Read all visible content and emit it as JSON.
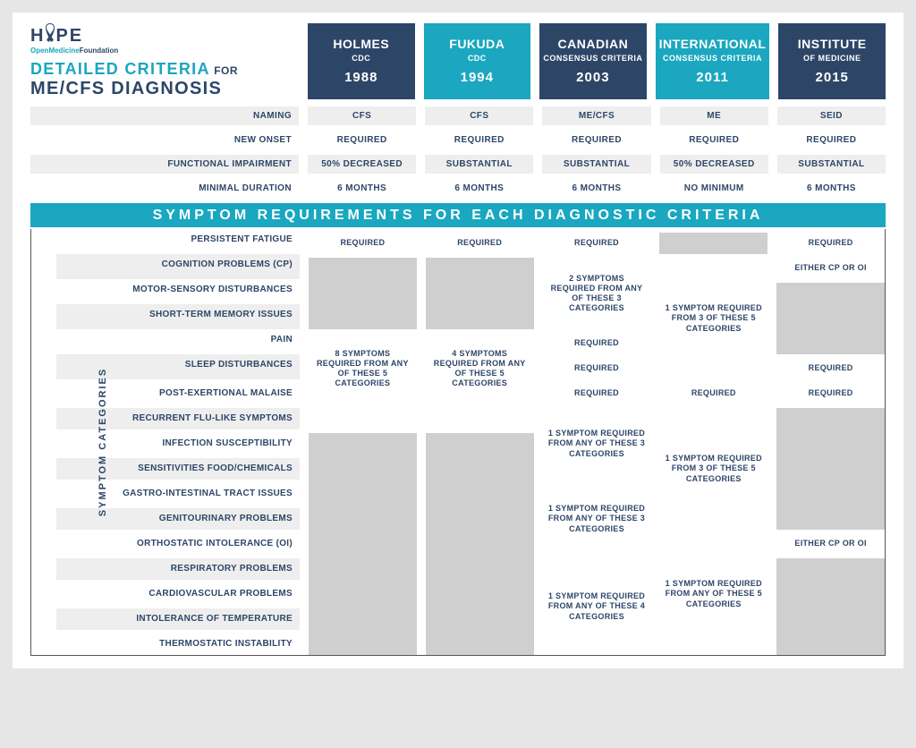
{
  "colors": {
    "dark_blue": "#2d4668",
    "teal": "#1aa7bf",
    "page_bg": "#e6e6e6",
    "shade": "#eeeeee",
    "grey_cell": "#cfcfcf"
  },
  "logo": {
    "text_prefix": "H",
    "text_suffix": "PE",
    "subtitle_teal": "OpenMedicine",
    "subtitle_dark": "Foundation"
  },
  "title": {
    "line1": "DETAILED CRITERIA",
    "for": "FOR",
    "line2": "ME/CFS DIAGNOSIS"
  },
  "columns": [
    {
      "name": "HOLMES",
      "sub": "CDC",
      "year": "1988",
      "shade": "dark"
    },
    {
      "name": "FUKUDA",
      "sub": "CDC",
      "year": "1994",
      "shade": "light"
    },
    {
      "name": "CANADIAN",
      "sub": "CONSENSUS CRITERIA",
      "year": "2003",
      "shade": "dark"
    },
    {
      "name": "INTERNATIONAL",
      "sub": "CONSENSUS CRITERIA",
      "year": "2011",
      "shade": "light"
    },
    {
      "name": "INSTITUTE",
      "sub": "OF MEDICINE",
      "year": "2015",
      "shade": "dark"
    }
  ],
  "summary_rows": [
    {
      "label": "NAMING",
      "shade": true,
      "cells": [
        "CFS",
        "CFS",
        "ME/CFS",
        "ME",
        "SEID"
      ]
    },
    {
      "label": "NEW ONSET",
      "shade": false,
      "cells": [
        "REQUIRED",
        "REQUIRED",
        "REQUIRED",
        "REQUIRED",
        "REQUIRED"
      ]
    },
    {
      "label": "FUNCTIONAL IMPAIRMENT",
      "shade": true,
      "cells": [
        "50% DECREASED",
        "SUBSTANTIAL",
        "SUBSTANTIAL",
        "50% DECREASED",
        "SUBSTANTIAL"
      ]
    },
    {
      "label": "MINIMAL DURATION",
      "shade": false,
      "cells": [
        "6 MONTHS",
        "6 MONTHS",
        "6 MONTHS",
        "NO MINIMUM",
        "6 MONTHS"
      ]
    }
  ],
  "banner": "SYMPTOM REQUIREMENTS FOR EACH DIAGNOSTIC CRITERIA",
  "side_label": "SYMPTOM CATEGORIES",
  "symptom_rows": [
    {
      "label": "PERSISTENT FATIGUE",
      "shade": false
    },
    {
      "label": "COGNITION PROBLEMS (CP)",
      "shade": true
    },
    {
      "label": "MOTOR-SENSORY DISTURBANCES",
      "shade": false
    },
    {
      "label": "SHORT-TERM MEMORY ISSUES",
      "shade": true
    },
    {
      "label": "PAIN",
      "shade": false
    },
    {
      "label": "SLEEP DISTURBANCES",
      "shade": true
    },
    {
      "label": "POST-EXERTIONAL MALAISE",
      "shade": false
    },
    {
      "label": "RECURRENT FLU-LIKE SYMPTOMS",
      "shade": true
    },
    {
      "label": "INFECTION SUSCEPTIBILITY",
      "shade": false
    },
    {
      "label": "SENSITIVITIES FOOD/CHEMICALS",
      "shade": true
    },
    {
      "label": "GASTRO-INTESTINAL TRACT ISSUES",
      "shade": false
    },
    {
      "label": "GENITOURINARY PROBLEMS",
      "shade": true
    },
    {
      "label": "ORTHOSTATIC INTOLERANCE (OI)",
      "shade": false
    },
    {
      "label": "RESPIRATORY PROBLEMS",
      "shade": true
    },
    {
      "label": "CARDIOVASCULAR PROBLEMS",
      "shade": false
    },
    {
      "label": "INTOLERANCE OF TEMPERATURE",
      "shade": true
    },
    {
      "label": "THERMOSTATIC INSTABILITY",
      "shade": false
    }
  ],
  "symptom_columns": [
    {
      "id": "holmes",
      "cells": [
        {
          "row": 0,
          "span": 1,
          "text": "REQUIRED",
          "style": "plain"
        },
        {
          "row": 1,
          "span": 3,
          "text": "",
          "style": "grey"
        },
        {
          "row": 4,
          "span": 3,
          "text": "8 SYMPTOMS REQUIRED FROM ANY OF THESE 5 CATEGORIES",
          "style": "plain"
        },
        {
          "row": 7,
          "span": 1,
          "text": "",
          "style": "plain"
        },
        {
          "row": 8,
          "span": 9,
          "text": "",
          "style": "grey"
        }
      ]
    },
    {
      "id": "fukuda",
      "cells": [
        {
          "row": 0,
          "span": 1,
          "text": "REQUIRED",
          "style": "plain"
        },
        {
          "row": 1,
          "span": 3,
          "text": "",
          "style": "grey"
        },
        {
          "row": 4,
          "span": 3,
          "text": "4 SYMPTOMS REQUIRED FROM ANY OF THESE 5 CATEGORIES",
          "style": "plain"
        },
        {
          "row": 7,
          "span": 1,
          "text": "",
          "style": "plain"
        },
        {
          "row": 8,
          "span": 9,
          "text": "",
          "style": "grey"
        }
      ]
    },
    {
      "id": "canadian",
      "cells": [
        {
          "row": 0,
          "span": 1,
          "text": "REQUIRED",
          "style": "plain"
        },
        {
          "row": 1,
          "span": 3,
          "text": "2 SYMPTOMS REQUIRED FROM ANY OF THESE 3 CATEGORIES",
          "style": "plain"
        },
        {
          "row": 4,
          "span": 1,
          "text": "REQUIRED",
          "style": "plain"
        },
        {
          "row": 5,
          "span": 1,
          "text": "REQUIRED",
          "style": "plain"
        },
        {
          "row": 6,
          "span": 1,
          "text": "REQUIRED",
          "style": "plain"
        },
        {
          "row": 7,
          "span": 3,
          "text": "1 SYMPTOM REQUIRED FROM ANY OF THESE 3 CATEGORIES",
          "style": "plain"
        },
        {
          "row": 10,
          "span": 3,
          "text": "1 SYMPTOM REQUIRED FROM ANY OF THESE 3 CATEGORIES",
          "style": "plain"
        },
        {
          "row": 13,
          "span": 4,
          "text": "1 SYMPTOM REQUIRED FROM ANY OF THESE 4 CATEGORIES",
          "style": "plain"
        }
      ]
    },
    {
      "id": "international",
      "cells": [
        {
          "row": 0,
          "span": 1,
          "text": "",
          "style": "grey"
        },
        {
          "row": 1,
          "span": 5,
          "text": "1 SYMPTOM REQUIRED FROM 3 OF THESE 5 CATEGORIES",
          "style": "plain"
        },
        {
          "row": 6,
          "span": 1,
          "text": "REQUIRED",
          "style": "plain"
        },
        {
          "row": 7,
          "span": 5,
          "text": "1 SYMPTOM REQUIRED FROM 3 OF THESE 5 CATEGORIES",
          "style": "plain"
        },
        {
          "row": 12,
          "span": 5,
          "text": "1 SYMPTOM REQUIRED FROM ANY OF THESE 5 CATEGORIES",
          "style": "plain"
        }
      ]
    },
    {
      "id": "institute",
      "cells": [
        {
          "row": 0,
          "span": 1,
          "text": "REQUIRED",
          "style": "plain"
        },
        {
          "row": 1,
          "span": 1,
          "text": "EITHER CP OR OI",
          "style": "plain"
        },
        {
          "row": 2,
          "span": 3,
          "text": "",
          "style": "grey"
        },
        {
          "row": 5,
          "span": 1,
          "text": "REQUIRED",
          "style": "plain"
        },
        {
          "row": 6,
          "span": 1,
          "text": "REQUIRED",
          "style": "plain"
        },
        {
          "row": 7,
          "span": 5,
          "text": "",
          "style": "grey"
        },
        {
          "row": 12,
          "span": 1,
          "text": "EITHER CP OR OI",
          "style": "plain"
        },
        {
          "row": 13,
          "span": 4,
          "text": "",
          "style": "grey"
        }
      ]
    }
  ]
}
